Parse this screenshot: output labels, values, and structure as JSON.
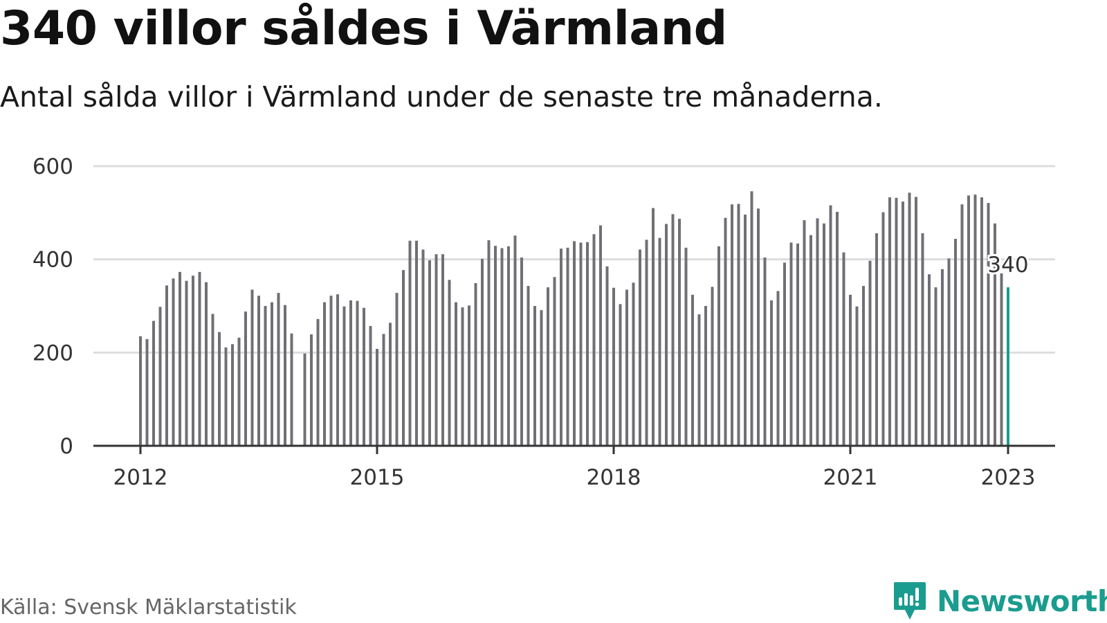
{
  "title": "340 villor såldes i Värmland",
  "subtitle": "Antal sålda villor i Värmland under de senaste tre månaderna.",
  "source": "Källa: Svensk Mäklarstatistik",
  "brand": {
    "name": "Newsworthy",
    "icon": "newsworthy-logo-icon",
    "color": "#1a9c8f"
  },
  "colors": {
    "bar": "#6f6f74",
    "highlight": "#1a9c8f",
    "grid": "#dddddd",
    "axis": "#333333"
  },
  "chart_data": {
    "type": "bar",
    "x_unit": "month",
    "x_start": "2012-01",
    "x_end": "2023-01",
    "ylim": [
      0,
      600
    ],
    "yticks": [
      0,
      200,
      400,
      600
    ],
    "xticks": [
      "2012",
      "2015",
      "2018",
      "2021",
      "2023"
    ],
    "grid": true,
    "legend": "none",
    "series": [
      {
        "values": [
          235,
          229,
          268,
          298,
          344,
          359,
          373,
          354,
          365,
          373,
          351,
          283,
          244,
          211,
          218,
          232,
          288,
          335,
          322,
          300,
          308,
          328,
          302,
          241,
          null,
          198,
          239,
          272,
          308,
          322,
          325,
          299,
          312,
          311,
          296,
          257,
          208,
          240,
          264,
          328,
          377,
          440,
          440,
          421,
          398,
          411,
          411,
          356,
          308,
          297,
          301,
          349,
          401,
          441,
          429,
          424,
          428,
          451,
          404,
          343,
          300,
          291,
          340,
          362,
          423,
          425,
          439,
          436,
          437,
          454,
          473,
          385,
          339,
          304,
          335,
          350,
          421,
          442,
          510,
          446,
          476,
          497,
          487,
          425,
          324,
          282,
          300,
          341,
          428,
          489,
          518,
          519,
          496,
          546,
          509,
          404,
          312,
          332,
          393,
          436,
          434,
          484,
          452,
          488,
          477,
          516,
          502,
          415,
          324,
          299,
          343,
          397,
          456,
          501,
          533,
          532,
          524,
          543,
          534,
          456,
          368,
          340,
          379,
          402,
          444,
          518,
          537,
          539,
          533,
          521,
          477,
          370,
          340
        ]
      }
    ],
    "annotations": [
      {
        "text": "340",
        "x": "2023-01",
        "y": 340
      }
    ]
  }
}
